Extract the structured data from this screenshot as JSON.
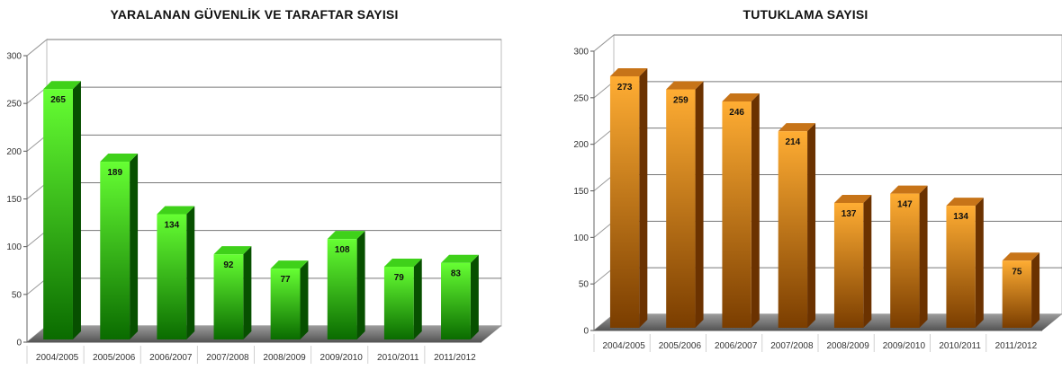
{
  "chart_data": [
    {
      "type": "bar",
      "title": "YARALANAN GÜVENLİK VE TARAFTAR SAYISI",
      "categories": [
        "2004/2005",
        "2005/2006",
        "2006/2007",
        "2007/2008",
        "2008/2009",
        "2009/2010",
        "2010/2011",
        "2011/2012"
      ],
      "values": [
        265,
        189,
        134,
        92,
        77,
        108,
        79,
        83
      ],
      "ylim": [
        0,
        300
      ],
      "yticks": [
        0,
        50,
        100,
        150,
        200,
        250,
        300
      ],
      "grid": true,
      "legend": "none",
      "style": "3d",
      "colors": {
        "bar_light": "#66ff33",
        "bar_dark": "#0a6b00",
        "bar_side": "#075000",
        "bar_top": "#3fd11a",
        "floor": "#7d7d7d"
      }
    },
    {
      "type": "bar",
      "title": "TUTUKLAMA SAYISI",
      "categories": [
        "2004/2005",
        "2005/2006",
        "2006/2007",
        "2007/2008",
        "2008/2009",
        "2009/2010",
        "2010/2011",
        "2011/2012"
      ],
      "values": [
        273,
        259,
        246,
        214,
        137,
        147,
        134,
        75
      ],
      "ylim": [
        0,
        300
      ],
      "yticks": [
        0,
        50,
        100,
        150,
        200,
        250,
        300
      ],
      "grid": true,
      "legend": "none",
      "style": "3d",
      "colors": {
        "bar_light": "#ffad33",
        "bar_dark": "#7a3d00",
        "bar_side": "#6b3200",
        "bar_top": "#c77418",
        "floor": "#7d7d7d"
      }
    }
  ]
}
